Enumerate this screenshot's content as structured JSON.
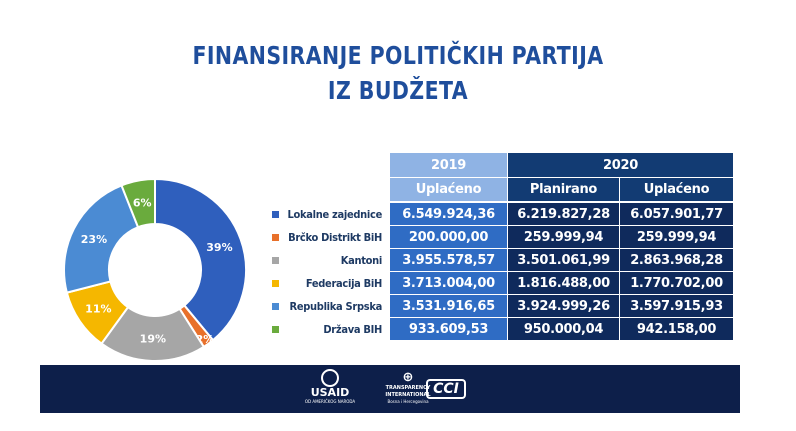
{
  "title": {
    "line1": "FINANSIRANJE POLITIČKIH PARTIJA",
    "line2": "IZ BUDŽETA"
  },
  "chart_data": {
    "type": "pie",
    "labels": [
      "Lokalne zajednice",
      "Brčko Distrikt BiH",
      "Kantoni",
      "Federacija BiH",
      "Republika Srpska",
      "Država BIH"
    ],
    "values": [
      39,
      2,
      19,
      11,
      23,
      6
    ],
    "value_labels": [
      "39%",
      "2%",
      "19%",
      "11%",
      "23%",
      "6%"
    ],
    "colors": [
      "#2f5fbd",
      "#e8702a",
      "#a6a6a6",
      "#f5b700",
      "#4b8bd3",
      "#6aab3d"
    ],
    "legend_placement": "right"
  },
  "table": {
    "year_2019": "2019",
    "year_2020": "2020",
    "col_headers": [
      "Uplaćeno",
      "Planirano",
      "Uplaćeno"
    ],
    "rows": [
      {
        "label": "Lokalne zajednice",
        "values": [
          "6.549.924,36",
          "6.219.827,28",
          "6.057.901,77"
        ]
      },
      {
        "label": "Brčko Distrikt BiH",
        "values": [
          "200.000,00",
          "259.999,94",
          "259.999,94"
        ]
      },
      {
        "label": "Kantoni",
        "values": [
          "3.955.578,57",
          "3.501.061,99",
          "2.863.968,28"
        ]
      },
      {
        "label": "Federacija BiH",
        "values": [
          "3.713.004,00",
          "1.816.488,00",
          "1.770.702,00"
        ]
      },
      {
        "label": "Republika Srpska",
        "values": [
          "3.531.916,65",
          "3.924.999,26",
          "3.597.915,93"
        ]
      },
      {
        "label": "Država BIH",
        "values": [
          "933.609,53",
          "950.000,04",
          "942.158,00"
        ]
      }
    ]
  },
  "footer": {
    "usaid": "USAID",
    "usaid_sub": "OD AMERIČKOG NARODA",
    "ti": "TRANSPARENCY INTERNATIONAL",
    "ti_sub": "Bosna i Hercegovina",
    "cci": "CCI"
  }
}
